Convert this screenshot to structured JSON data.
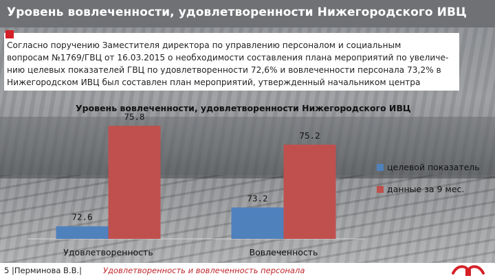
{
  "header": {
    "title": "Уровень вовлеченности, удовлетворенности  Нижегородского ИВЦ"
  },
  "intro": {
    "lines": [
      "      Согласно поручению Заместителя директора по управлению персоналом и социальным",
      "вопросам №1769/ГВЦ от 16.03.2015 о необходимости составления плана мероприятий по увеличе-",
      "нию целевых показателей ГВЦ по удовлетворенности 72,6% и вовлеченности персонала 73,2% в",
      "Нижегородском ИВЦ был составлен план мероприятий, утвержденный начальником центра"
    ]
  },
  "chart_data": {
    "type": "bar",
    "title": "Уровень вовлеченности, удовлетворенности  Нижегородского ИВЦ",
    "categories": [
      "Удовлетворенность",
      "Вовлеченность"
    ],
    "series": [
      {
        "name": "целевой показатель",
        "values": [
          72.6,
          73.2
        ],
        "color": "#4f81bd"
      },
      {
        "name": "данные за 9 мес.",
        "values": [
          75.8,
          75.2
        ],
        "color": "#c0504d"
      }
    ],
    "ylim": [
      72.2,
      76.2
    ],
    "grid": false,
    "legend": "right"
  },
  "footer": {
    "page_label": "5 |Перминова В.В.|",
    "caption": "Удовлетворенность и вовлеченность персонала"
  },
  "colors": {
    "accent": "#d42128",
    "header_bg": "#6f7175"
  },
  "icons": {
    "logo": "rzd-logo-icon"
  }
}
